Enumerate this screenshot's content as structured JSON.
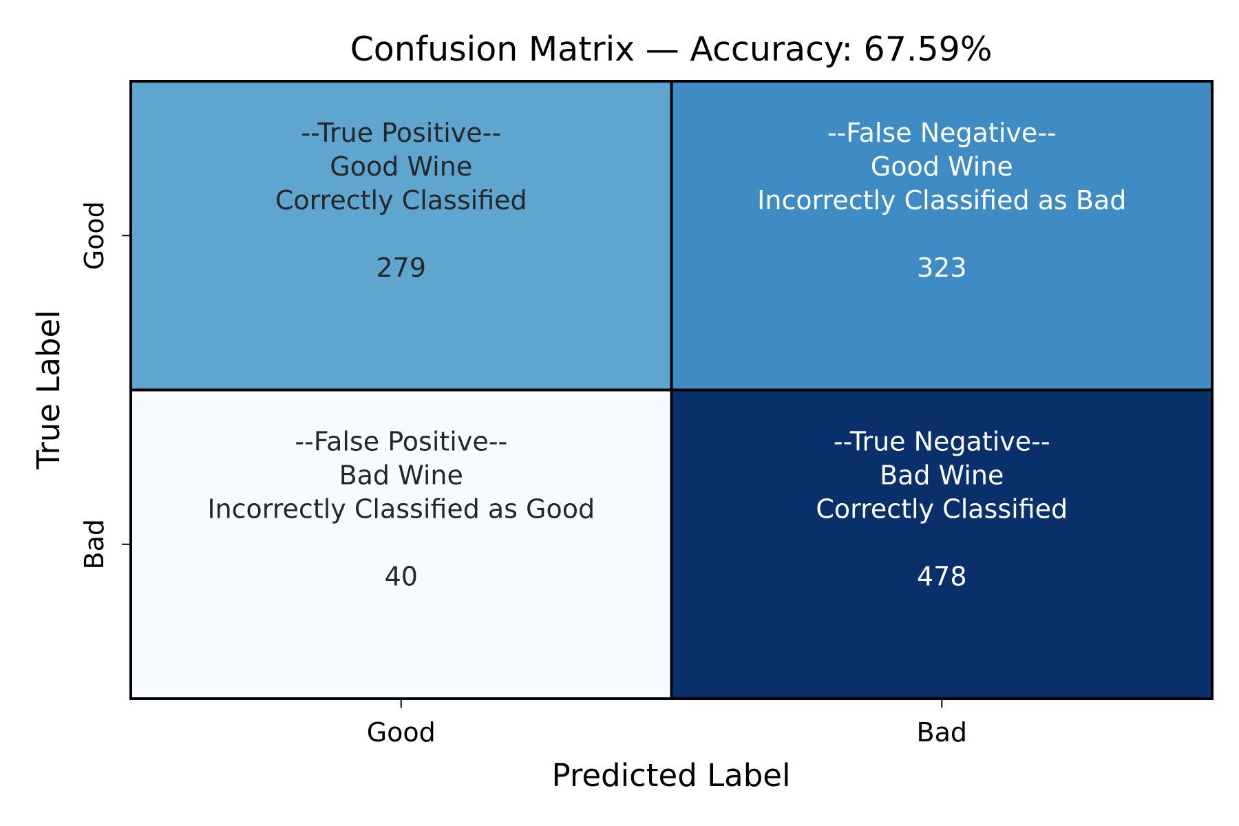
{
  "chart_data": {
    "type": "heatmap",
    "title": "Confusion Matrix — Accuracy: 67.59%",
    "xlabel": "Predicted Label",
    "ylabel": "True Label",
    "x_categories": [
      "Good",
      "Bad"
    ],
    "y_categories": [
      "Good",
      "Bad"
    ],
    "values": [
      [
        279,
        323
      ],
      [
        40,
        478
      ]
    ],
    "colormap": "Blues",
    "color_range": [
      40,
      478
    ],
    "cell_colors": [
      [
        "#5ea5d0",
        "#3f8bc3"
      ],
      [
        "#f7fbff",
        "#0a306b"
      ]
    ],
    "cell_labels": [
      [
        [
          "--True Positive--",
          "Good Wine",
          "Correctly Classified"
        ],
        [
          "--False Negative--",
          "Good Wine",
          "Incorrectly Classified as Bad"
        ]
      ],
      [
        [
          "--False Positive--",
          "Bad Wine",
          "Incorrectly Classified as Good"
        ],
        [
          "--True Negative--",
          "Bad Wine",
          "Correctly Classified"
        ]
      ]
    ],
    "colorbar": false,
    "grid": false
  }
}
